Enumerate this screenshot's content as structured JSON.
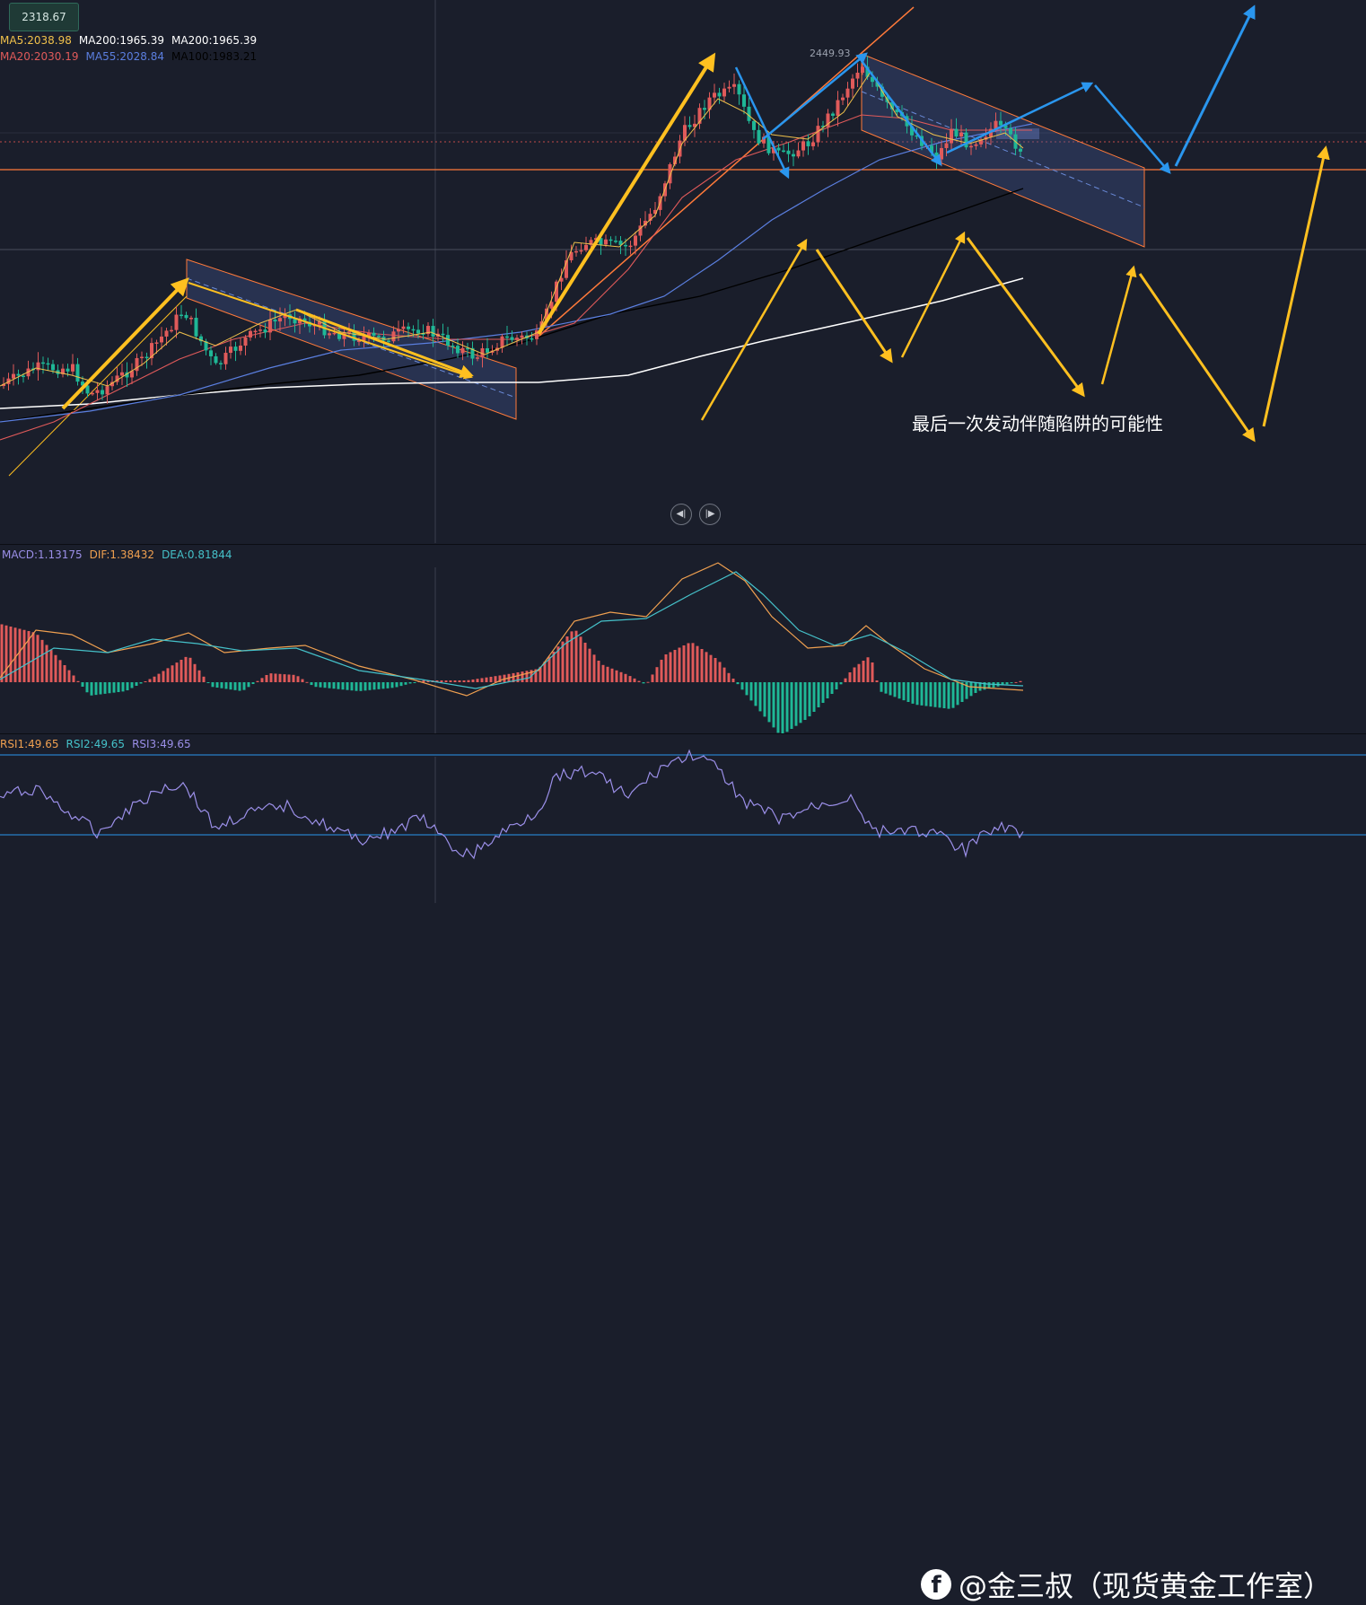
{
  "price_tag": "2318.67",
  "peak_label": "2449.93",
  "legend_main": {
    "row1": [
      {
        "text": "MA5:2038.98",
        "color": "#f0c14b"
      },
      {
        "text": "MA200:1965.39",
        "color": "#ffffff"
      },
      {
        "text": "MA200:1965.39",
        "color": "#ffffff"
      }
    ],
    "row2": [
      {
        "text": "MA20:2030.19",
        "color": "#e05a5a"
      },
      {
        "text": "MA55:2028.84",
        "color": "#5b7fe0"
      },
      {
        "text": "MA100:1983.21",
        "color": "#000000"
      }
    ]
  },
  "legend_macd": [
    {
      "text": "MACD:1.13175",
      "color": "#9b8fe8"
    },
    {
      "text": "DIF:1.38432",
      "color": "#f0a050"
    },
    {
      "text": "DEA:0.81844",
      "color": "#45c1c9"
    }
  ],
  "legend_rsi": [
    {
      "text": "RSI1:49.65",
      "color": "#f0a050"
    },
    {
      "text": "RSI2:49.65",
      "color": "#45c1c9"
    },
    {
      "text": "RSI3:49.65",
      "color": "#9b8fe8"
    }
  ],
  "annotation": "最后一次发动伴随陷阱的可能性",
  "watermark": "@金三叔（现货黄金工作室）",
  "watermark_icon": "facebook-icon",
  "nav": {
    "prev_icon": "skip-back-icon",
    "next_icon": "skip-forward-icon"
  },
  "colors": {
    "bg": "#1a1e2b",
    "up": "#e05a5a",
    "down": "#1fb796",
    "ma5": "#f0c14b",
    "ma20": "#e05a5a",
    "ma55": "#5b7fe0",
    "ma100": "#000000",
    "ma200": "#ffffff",
    "arrow_yellow": "#ffc020",
    "arrow_blue": "#2a96ee",
    "channel": "#ff7a3a"
  },
  "chart_data": {
    "type": "candlestick",
    "levels": {
      "high_marker": 2449.93,
      "current_price": 2318.67
    },
    "series": [
      "MA5",
      "MA20",
      "MA55",
      "MA100",
      "MA200"
    ],
    "indicators": [
      "MACD",
      "RSI"
    ]
  }
}
